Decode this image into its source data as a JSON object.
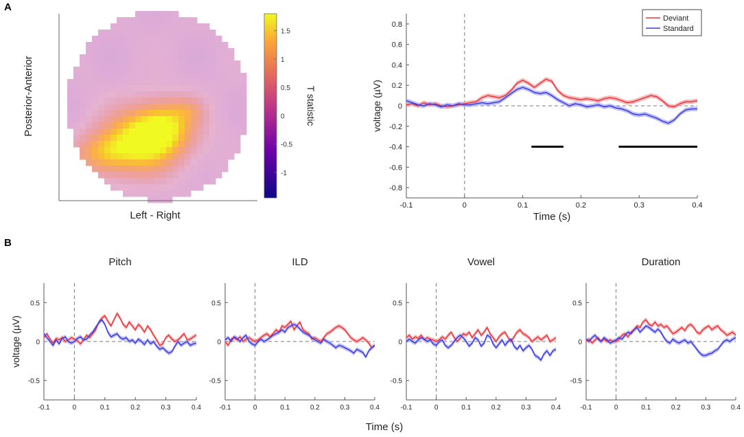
{
  "panel_labels": {
    "a": "A",
    "b": "B"
  },
  "colors": {
    "deviant": "#e8363b",
    "standard": "#3a3ae6",
    "deviant_band": "#f5a3a5",
    "standard_band": "#a9a9f2",
    "axis": "#555555",
    "text": "#222222",
    "zero": "#777777",
    "sig_bar": "#000000"
  },
  "topomap": {
    "ylabel": "Posterior-Anterior",
    "xlabel": "Left - Right",
    "colorbar": {
      "label": "T statistic",
      "range": [
        -1.45,
        1.8
      ],
      "ticks": [
        "1.5",
        "1",
        "0.5",
        "0",
        "-0.5",
        "-1"
      ],
      "tick_values": [
        1.5,
        1,
        0.5,
        0,
        -0.5,
        -1
      ]
    },
    "blob_peak": 1.8,
    "background_value": -0.2
  },
  "chart_data": [
    {
      "id": "main",
      "type": "line",
      "title": "",
      "xlabel": "Time (s)",
      "ylabel": "voltage (µV)",
      "xlim": [
        -0.1,
        0.4
      ],
      "ylim": [
        -0.9,
        0.9
      ],
      "xticks": [
        "-0.1",
        "0",
        "0.1",
        "0.2",
        "0.3",
        "0.4"
      ],
      "xtick_values": [
        -0.1,
        0,
        0.1,
        0.2,
        0.3,
        0.4
      ],
      "yticks": [
        "0.8",
        "0.6",
        "0.4",
        "0.2",
        "0",
        "-0.2",
        "-0.4",
        "-0.6",
        "-0.8"
      ],
      "ytick_values": [
        0.8,
        0.6,
        0.4,
        0.2,
        0,
        -0.2,
        -0.4,
        -0.6,
        -0.8
      ],
      "legend": {
        "position": "top-right",
        "entries": [
          "Deviant",
          "Standard"
        ]
      },
      "band": 0.022,
      "significance_bars": [
        {
          "x": [
            0.115,
            0.17
          ],
          "y": -0.4
        },
        {
          "x": [
            0.265,
            0.4
          ],
          "y": -0.4
        }
      ],
      "x": [
        -0.1,
        -0.09,
        -0.08,
        -0.07,
        -0.06,
        -0.05,
        -0.04,
        -0.03,
        -0.02,
        -0.01,
        0,
        0.01,
        0.02,
        0.03,
        0.04,
        0.05,
        0.06,
        0.07,
        0.08,
        0.09,
        0.1,
        0.11,
        0.12,
        0.13,
        0.14,
        0.15,
        0.16,
        0.17,
        0.18,
        0.19,
        0.2,
        0.21,
        0.22,
        0.23,
        0.24,
        0.25,
        0.26,
        0.27,
        0.28,
        0.29,
        0.3,
        0.31,
        0.32,
        0.33,
        0.34,
        0.35,
        0.36,
        0.37,
        0.38,
        0.39,
        0.4
      ],
      "series": [
        {
          "name": "Deviant",
          "values": [
            0.01,
            0.02,
            0.0,
            0.03,
            0.01,
            0.02,
            0.0,
            -0.01,
            0.0,
            0.01,
            0.02,
            0.03,
            0.04,
            0.08,
            0.1,
            0.09,
            0.08,
            0.1,
            0.15,
            0.22,
            0.25,
            0.22,
            0.18,
            0.22,
            0.26,
            0.24,
            0.15,
            0.1,
            0.08,
            0.07,
            0.06,
            0.07,
            0.06,
            0.05,
            0.07,
            0.08,
            0.07,
            0.05,
            0.03,
            0.04,
            0.06,
            0.08,
            0.1,
            0.09,
            0.05,
            0.0,
            -0.01,
            0.02,
            0.04,
            0.04,
            0.05
          ]
        },
        {
          "name": "Standard",
          "values": [
            0.05,
            0.03,
            0.01,
            0.0,
            0.02,
            0.01,
            -0.01,
            0.01,
            0.0,
            0.02,
            0.01,
            0.01,
            0.02,
            0.03,
            0.02,
            0.03,
            0.04,
            0.08,
            0.12,
            0.16,
            0.18,
            0.16,
            0.13,
            0.12,
            0.13,
            0.1,
            0.06,
            0.03,
            0.0,
            0.02,
            0.01,
            -0.01,
            0.0,
            0.01,
            -0.01,
            0.0,
            -0.02,
            -0.03,
            -0.05,
            -0.08,
            -0.09,
            -0.08,
            -0.1,
            -0.12,
            -0.15,
            -0.17,
            -0.14,
            -0.08,
            -0.04,
            -0.03,
            -0.03
          ]
        }
      ]
    },
    {
      "id": "pitch",
      "type": "line",
      "title": "Pitch",
      "xlabel": "",
      "ylabel": "voltage (µV)",
      "xlim": [
        -0.1,
        0.4
      ],
      "ylim": [
        -0.75,
        0.75
      ],
      "xticks": [
        "-0.1",
        "0",
        "0.1",
        "0.2",
        "0.3",
        "0.4"
      ],
      "xtick_values": [
        -0.1,
        0,
        0.1,
        0.2,
        0.3,
        0.4
      ],
      "yticks": [
        "0.5",
        "0",
        "-0.5"
      ],
      "ytick_values": [
        0.5,
        0,
        -0.5
      ],
      "band": 0.028,
      "x": [
        -0.1,
        -0.09,
        -0.08,
        -0.07,
        -0.06,
        -0.05,
        -0.04,
        -0.03,
        -0.02,
        -0.01,
        0,
        0.01,
        0.02,
        0.03,
        0.04,
        0.05,
        0.06,
        0.07,
        0.08,
        0.09,
        0.1,
        0.11,
        0.12,
        0.13,
        0.14,
        0.15,
        0.16,
        0.17,
        0.18,
        0.19,
        0.2,
        0.21,
        0.22,
        0.23,
        0.24,
        0.25,
        0.26,
        0.27,
        0.28,
        0.29,
        0.3,
        0.31,
        0.32,
        0.33,
        0.34,
        0.35,
        0.36,
        0.37,
        0.38,
        0.39,
        0.4
      ],
      "series": [
        {
          "name": "Deviant",
          "values": [
            0.05,
            0.1,
            0.03,
            -0.02,
            0.04,
            0.02,
            0.05,
            0.0,
            0.02,
            0.05,
            0.03,
            0.01,
            -0.03,
            0.02,
            0.08,
            0.05,
            0.1,
            0.15,
            0.25,
            0.3,
            0.33,
            0.26,
            0.2,
            0.28,
            0.36,
            0.3,
            0.22,
            0.18,
            0.25,
            0.2,
            0.15,
            0.22,
            0.18,
            0.12,
            0.2,
            0.15,
            0.08,
            0.02,
            -0.05,
            -0.03,
            0.05,
            0.08,
            0.03,
            0.0,
            0.02,
            0.06,
            0.1,
            0.02,
            0.03,
            0.06,
            0.08
          ]
        },
        {
          "name": "Standard",
          "values": [
            0.1,
            0.05,
            0.0,
            -0.05,
            0.02,
            -0.03,
            0.04,
            0.06,
            0.0,
            -0.02,
            0.0,
            0.04,
            0.06,
            0.02,
            0.03,
            0.08,
            0.12,
            0.18,
            0.24,
            0.28,
            0.22,
            0.12,
            0.06,
            0.08,
            0.1,
            0.05,
            0.03,
            0.05,
            0.0,
            0.02,
            -0.02,
            0.03,
            0.0,
            -0.04,
            0.02,
            -0.03,
            0.0,
            -0.06,
            -0.1,
            -0.08,
            -0.12,
            -0.15,
            -0.13,
            -0.06,
            0.0,
            -0.05,
            -0.02,
            0.0,
            -0.05,
            -0.03,
            -0.02
          ]
        }
      ]
    },
    {
      "id": "ild",
      "type": "line",
      "title": "ILD",
      "xlabel": "",
      "ylabel": "",
      "xlim": [
        -0.1,
        0.4
      ],
      "ylim": [
        -0.75,
        0.75
      ],
      "xticks": [
        "-0.1",
        "0",
        "0.1",
        "0.2",
        "0.3",
        "0.4"
      ],
      "xtick_values": [
        -0.1,
        0,
        0.1,
        0.2,
        0.3,
        0.4
      ],
      "yticks": [
        "0.5",
        "0",
        "-0.5"
      ],
      "ytick_values": [
        0.5,
        0,
        -0.5
      ],
      "band": 0.028,
      "x": [
        -0.1,
        -0.09,
        -0.08,
        -0.07,
        -0.06,
        -0.05,
        -0.04,
        -0.03,
        -0.02,
        -0.01,
        0,
        0.01,
        0.02,
        0.03,
        0.04,
        0.05,
        0.06,
        0.07,
        0.08,
        0.09,
        0.1,
        0.11,
        0.12,
        0.13,
        0.14,
        0.15,
        0.16,
        0.17,
        0.18,
        0.19,
        0.2,
        0.21,
        0.22,
        0.23,
        0.24,
        0.25,
        0.26,
        0.27,
        0.28,
        0.29,
        0.3,
        0.31,
        0.32,
        0.33,
        0.34,
        0.35,
        0.36,
        0.37,
        0.38,
        0.39,
        0.4
      ],
      "series": [
        {
          "name": "Deviant",
          "values": [
            0.0,
            -0.05,
            0.03,
            0.05,
            0.02,
            0.06,
            0.0,
            0.03,
            0.05,
            0.02,
            0.0,
            0.02,
            0.05,
            0.08,
            0.1,
            0.06,
            0.1,
            0.15,
            0.12,
            0.2,
            0.18,
            0.22,
            0.26,
            0.15,
            0.2,
            0.25,
            0.15,
            0.12,
            0.1,
            0.03,
            0.05,
            0.02,
            0.0,
            0.05,
            0.1,
            0.12,
            0.15,
            0.18,
            0.2,
            0.18,
            0.15,
            0.1,
            0.05,
            0.02,
            0.0,
            0.02,
            0.05,
            0.02,
            -0.02,
            -0.08,
            -0.05
          ]
        },
        {
          "name": "Standard",
          "values": [
            0.02,
            0.05,
            0.0,
            0.06,
            0.04,
            0.0,
            0.05,
            0.08,
            0.0,
            -0.03,
            -0.05,
            0.0,
            0.03,
            0.0,
            0.02,
            0.05,
            0.08,
            0.1,
            0.12,
            0.15,
            0.12,
            0.18,
            0.2,
            0.22,
            0.2,
            0.16,
            0.12,
            0.1,
            0.08,
            0.05,
            0.02,
            0.0,
            -0.02,
            0.03,
            0.0,
            -0.02,
            -0.05,
            -0.08,
            -0.05,
            -0.06,
            -0.08,
            -0.1,
            -0.12,
            -0.15,
            -0.1,
            -0.12,
            -0.14,
            -0.2,
            -0.12,
            -0.08,
            -0.05
          ]
        }
      ]
    },
    {
      "id": "vowel",
      "type": "line",
      "title": "Vowel",
      "xlabel": "",
      "ylabel": "",
      "xlim": [
        -0.1,
        0.4
      ],
      "ylim": [
        -0.75,
        0.75
      ],
      "xticks": [
        "-0.1",
        "0",
        "0.1",
        "0.2",
        "0.3",
        "0.4"
      ],
      "xtick_values": [
        -0.1,
        0,
        0.1,
        0.2,
        0.3,
        0.4
      ],
      "yticks": [
        "0.5",
        "0",
        "-0.5"
      ],
      "ytick_values": [
        0.5,
        0,
        -0.5
      ],
      "band": 0.028,
      "x": [
        -0.1,
        -0.09,
        -0.08,
        -0.07,
        -0.06,
        -0.05,
        -0.04,
        -0.03,
        -0.02,
        -0.01,
        0,
        0.01,
        0.02,
        0.03,
        0.04,
        0.05,
        0.06,
        0.07,
        0.08,
        0.09,
        0.1,
        0.11,
        0.12,
        0.13,
        0.14,
        0.15,
        0.16,
        0.17,
        0.18,
        0.19,
        0.2,
        0.21,
        0.22,
        0.23,
        0.24,
        0.25,
        0.26,
        0.27,
        0.28,
        0.29,
        0.3,
        0.31,
        0.32,
        0.33,
        0.34,
        0.35,
        0.36,
        0.37,
        0.38,
        0.39,
        0.4
      ],
      "series": [
        {
          "name": "Deviant",
          "values": [
            0.05,
            0.08,
            0.03,
            0.06,
            0.04,
            0.08,
            0.02,
            0.05,
            0.03,
            0.02,
            0.0,
            0.02,
            0.06,
            0.03,
            0.08,
            0.12,
            0.05,
            0.0,
            0.04,
            0.1,
            0.08,
            0.12,
            0.05,
            0.1,
            0.15,
            0.08,
            0.12,
            0.18,
            0.1,
            0.05,
            0.0,
            0.06,
            0.1,
            0.12,
            0.05,
            0.0,
            0.06,
            0.12,
            0.15,
            0.1,
            0.08,
            0.05,
            0.0,
            0.03,
            0.06,
            0.02,
            0.05,
            0.08,
            0.0,
            0.02,
            0.05
          ]
        },
        {
          "name": "Standard",
          "values": [
            0.0,
            0.03,
            0.0,
            -0.02,
            0.02,
            0.05,
            0.03,
            0.0,
            0.02,
            -0.03,
            -0.05,
            0.0,
            0.02,
            -0.05,
            -0.08,
            -0.05,
            0.0,
            0.05,
            0.08,
            0.05,
            0.0,
            -0.06,
            -0.02,
            0.05,
            0.02,
            -0.06,
            -0.02,
            0.08,
            0.06,
            -0.03,
            -0.08,
            -0.03,
            0.02,
            -0.05,
            0.0,
            0.03,
            -0.06,
            -0.1,
            -0.05,
            -0.12,
            -0.08,
            -0.05,
            -0.1,
            -0.18,
            -0.2,
            -0.24,
            -0.16,
            -0.12,
            -0.18,
            -0.12,
            -0.1
          ]
        }
      ]
    },
    {
      "id": "duration",
      "type": "line",
      "title": "Duration",
      "xlabel": "",
      "ylabel": "",
      "xlim": [
        -0.1,
        0.4
      ],
      "ylim": [
        -0.75,
        0.75
      ],
      "xticks": [
        "-0.1",
        "0",
        "0.1",
        "0.2",
        "0.3",
        "0.4"
      ],
      "xtick_values": [
        -0.1,
        0,
        0.1,
        0.2,
        0.3,
        0.4
      ],
      "yticks": [
        "0.5",
        "0",
        "-0.5"
      ],
      "ytick_values": [
        0.5,
        0,
        -0.5
      ],
      "band": 0.028,
      "x": [
        -0.1,
        -0.09,
        -0.08,
        -0.07,
        -0.06,
        -0.05,
        -0.04,
        -0.03,
        -0.02,
        -0.01,
        0,
        0.01,
        0.02,
        0.03,
        0.04,
        0.05,
        0.06,
        0.07,
        0.08,
        0.09,
        0.1,
        0.11,
        0.12,
        0.13,
        0.14,
        0.15,
        0.16,
        0.17,
        0.18,
        0.19,
        0.2,
        0.21,
        0.22,
        0.23,
        0.24,
        0.25,
        0.26,
        0.27,
        0.28,
        0.29,
        0.3,
        0.31,
        0.32,
        0.33,
        0.34,
        0.35,
        0.36,
        0.37,
        0.38,
        0.39,
        0.4
      ],
      "series": [
        {
          "name": "Deviant",
          "values": [
            0.0,
            0.03,
            -0.02,
            0.02,
            0.05,
            0.0,
            0.03,
            0.0,
            0.02,
            0.0,
            0.0,
            0.03,
            0.08,
            0.1,
            0.06,
            0.12,
            0.15,
            0.2,
            0.18,
            0.25,
            0.28,
            0.22,
            0.2,
            0.25,
            0.2,
            0.22,
            0.18,
            0.2,
            0.15,
            0.1,
            0.12,
            0.15,
            0.18,
            0.14,
            0.2,
            0.22,
            0.18,
            0.12,
            0.1,
            0.15,
            0.18,
            0.2,
            0.15,
            0.18,
            0.2,
            0.15,
            0.12,
            0.08,
            0.1,
            0.12,
            0.08
          ]
        },
        {
          "name": "Standard",
          "values": [
            0.03,
            0.0,
            0.05,
            0.08,
            0.03,
            0.0,
            0.05,
            0.02,
            -0.02,
            0.0,
            0.02,
            0.05,
            0.03,
            0.08,
            0.12,
            0.1,
            0.15,
            0.18,
            0.12,
            0.16,
            0.2,
            0.18,
            0.15,
            0.12,
            0.16,
            0.12,
            0.05,
            0.0,
            -0.02,
            0.03,
            0.0,
            -0.02,
            0.0,
            0.02,
            -0.02,
            0.0,
            -0.05,
            -0.1,
            -0.15,
            -0.18,
            -0.18,
            -0.16,
            -0.15,
            -0.12,
            -0.1,
            -0.05,
            0.0,
            0.02,
            0.0,
            0.03,
            0.05
          ]
        }
      ]
    }
  ],
  "shared_xlabel_b": "Time (s)"
}
